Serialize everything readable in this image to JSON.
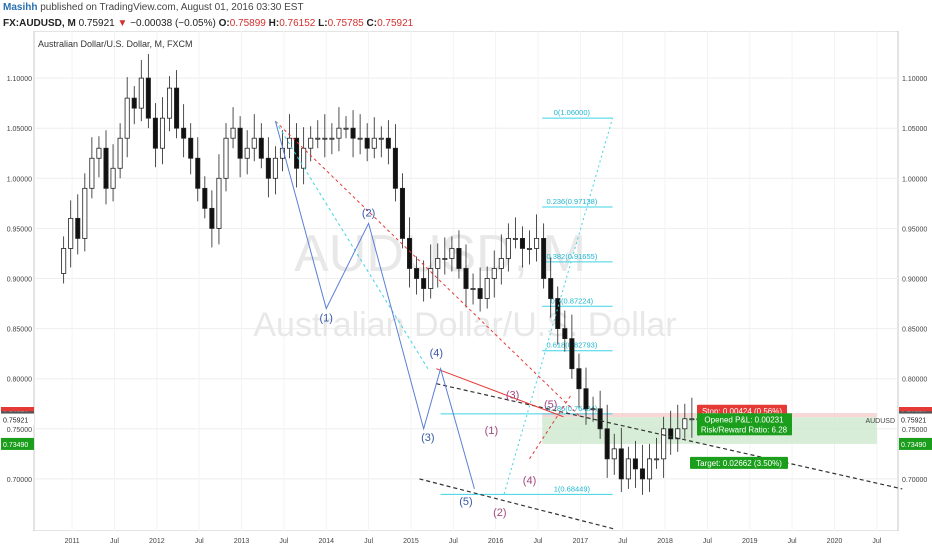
{
  "header": {
    "author": "Masihh",
    "published": "published on TradingView.com, August 01, 2016 03:30 EST",
    "symbol": "FX:AUDUSD, M",
    "last": "0.75921",
    "change": "−0.00038 (−0.05%)",
    "o_label": "O:",
    "o": "0.75899",
    "h_label": "H:",
    "h": "0.76152",
    "l_label": "L:",
    "l": "0.75785",
    "c_label": "C:",
    "c": "0.75921"
  },
  "chart_data": {
    "type": "candlestick",
    "title": "Australian Dollar/U.S. Dollar, M, FXCM",
    "watermark_symbol": "AUDUSD, M",
    "watermark_name": "Australian Dollar/U.S. Dollar",
    "ylim": [
      0.648,
      1.147
    ],
    "y_ticks": [
      "1.10000",
      "1.05000",
      "1.00000",
      "0.95000",
      "0.90000",
      "0.85000",
      "0.80000",
      "0.75000",
      "0.70000"
    ],
    "x_ticks": [
      {
        "label": "2011",
        "t": 2011.0
      },
      {
        "label": "Jul",
        "t": 2011.5
      },
      {
        "label": "2012",
        "t": 2012.0
      },
      {
        "label": "Jul",
        "t": 2012.5
      },
      {
        "label": "2013",
        "t": 2013.0
      },
      {
        "label": "Jul",
        "t": 2013.5
      },
      {
        "label": "2014",
        "t": 2014.0
      },
      {
        "label": "Jul",
        "t": 2014.5
      },
      {
        "label": "2015",
        "t": 2015.0
      },
      {
        "label": "Jul",
        "t": 2015.5
      },
      {
        "label": "2016",
        "t": 2016.0
      },
      {
        "label": "Jul",
        "t": 2016.5
      },
      {
        "label": "2017",
        "t": 2017.0
      },
      {
        "label": "Jul",
        "t": 2017.5
      },
      {
        "label": "2018",
        "t": 2018.0
      },
      {
        "label": "Jul",
        "t": 2018.5
      },
      {
        "label": "2019",
        "t": 2019.0
      },
      {
        "label": "Jul",
        "t": 2019.5
      },
      {
        "label": "2020",
        "t": 2020.0
      },
      {
        "label": "Jul",
        "t": 2020.5
      }
    ],
    "price_badges": [
      {
        "value": 0.76576,
        "label": "0.76576",
        "color": "#e53935"
      },
      {
        "value": 0.76152,
        "label": "0.76152",
        "color": "#555555"
      },
      {
        "value": 0.75921,
        "label": "0.75921",
        "color": "#ffffff"
      },
      {
        "value": 0.7349,
        "label": "0.73490",
        "color": "#1b9e1b"
      }
    ],
    "symbol_label": "AUDUSD",
    "ohlc_closes": [
      0.93,
      0.96,
      0.94,
      0.99,
      1.02,
      1.03,
      0.99,
      1.01,
      1.04,
      1.08,
      1.07,
      1.1,
      1.06,
      1.03,
      1.06,
      1.09,
      1.05,
      1.04,
      1.02,
      0.99,
      0.97,
      0.95,
      1.0,
      1.04,
      1.05,
      1.02,
      1.03,
      1.04,
      1.02,
      1.0,
      1.02,
      1.03,
      1.04,
      1.01,
      1.03,
      1.04,
      1.04,
      1.04,
      1.04,
      1.05,
      1.05,
      1.04,
      1.04,
      1.03,
      1.04,
      1.04,
      1.03,
      0.99,
      0.94,
      0.91,
      0.9,
      0.89,
      0.91,
      0.92,
      0.92,
      0.93,
      0.91,
      0.89,
      0.89,
      0.88,
      0.9,
      0.91,
      0.92,
      0.94,
      0.94,
      0.93,
      0.93,
      0.94,
      0.9,
      0.88,
      0.85,
      0.84,
      0.81,
      0.79,
      0.77,
      0.77,
      0.75,
      0.72,
      0.73,
      0.7,
      0.72,
      0.71,
      0.7,
      0.72,
      0.72,
      0.75,
      0.74,
      0.75,
      0.76,
      0.76,
      0.759
    ],
    "fib_levels": [
      {
        "label": "0(1.06000)",
        "value": 1.06
      },
      {
        "label": "0.236(0.97138)",
        "value": 0.97138
      },
      {
        "label": "0.382(0.91655)",
        "value": 0.91655
      },
      {
        "label": "0.5(0.87224)",
        "value": 0.87224
      },
      {
        "label": "0.618(0.82793)",
        "value": 0.82793
      },
      {
        "label": "0.786(0.76484)",
        "value": 0.76484
      },
      {
        "label": "1(0.68449)",
        "value": 0.68449
      }
    ],
    "wave_labels_blue": [
      "(1)",
      "(2)",
      "(3)",
      "(4)",
      "(5)"
    ],
    "wave_labels_purple": [
      "(1)",
      "(2)",
      "(3)",
      "(4)",
      "(5)"
    ],
    "position": {
      "stop": "Stop: 0.00424 (0.56%)",
      "pnl": "Opened P&L: 0.00231",
      "rr": "Risk/Reward Ratio: 6.28",
      "target": "Target: 0.02662 (3.50%)"
    }
  }
}
